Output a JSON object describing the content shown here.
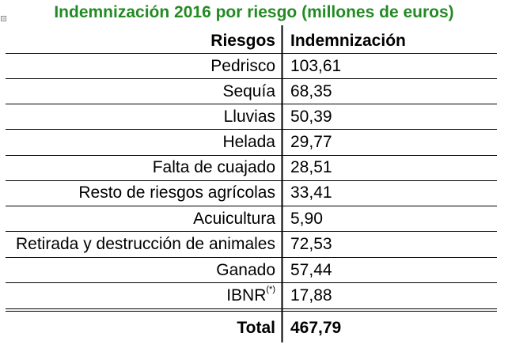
{
  "colors": {
    "title": "#238b23",
    "text": "#000000",
    "rule": "#000000"
  },
  "chart_data": {
    "type": "table",
    "title": "Indemnización 2016 por riesgo (millones de euros)",
    "columns": [
      "Riesgos",
      "Indemnización"
    ],
    "rows": [
      {
        "risk": "Pedrisco",
        "value": "103,61"
      },
      {
        "risk": "Sequía",
        "value": "68,35"
      },
      {
        "risk": "Lluvias",
        "value": "50,39"
      },
      {
        "risk": "Helada",
        "value": "29,77"
      },
      {
        "risk": "Falta de cuajado",
        "value": "28,51"
      },
      {
        "risk": "Resto de riesgos agrícolas",
        "value": "33,41"
      },
      {
        "risk": "Acuicultura",
        "value": "5,90"
      },
      {
        "risk": "Retirada y destrucción de animales",
        "value": "72,53"
      },
      {
        "risk": "Ganado",
        "value": "57,44"
      },
      {
        "risk": "IBNR",
        "sup": "(*)",
        "value": "17,88"
      }
    ],
    "total": {
      "label": "Total",
      "value": "467,79"
    }
  }
}
